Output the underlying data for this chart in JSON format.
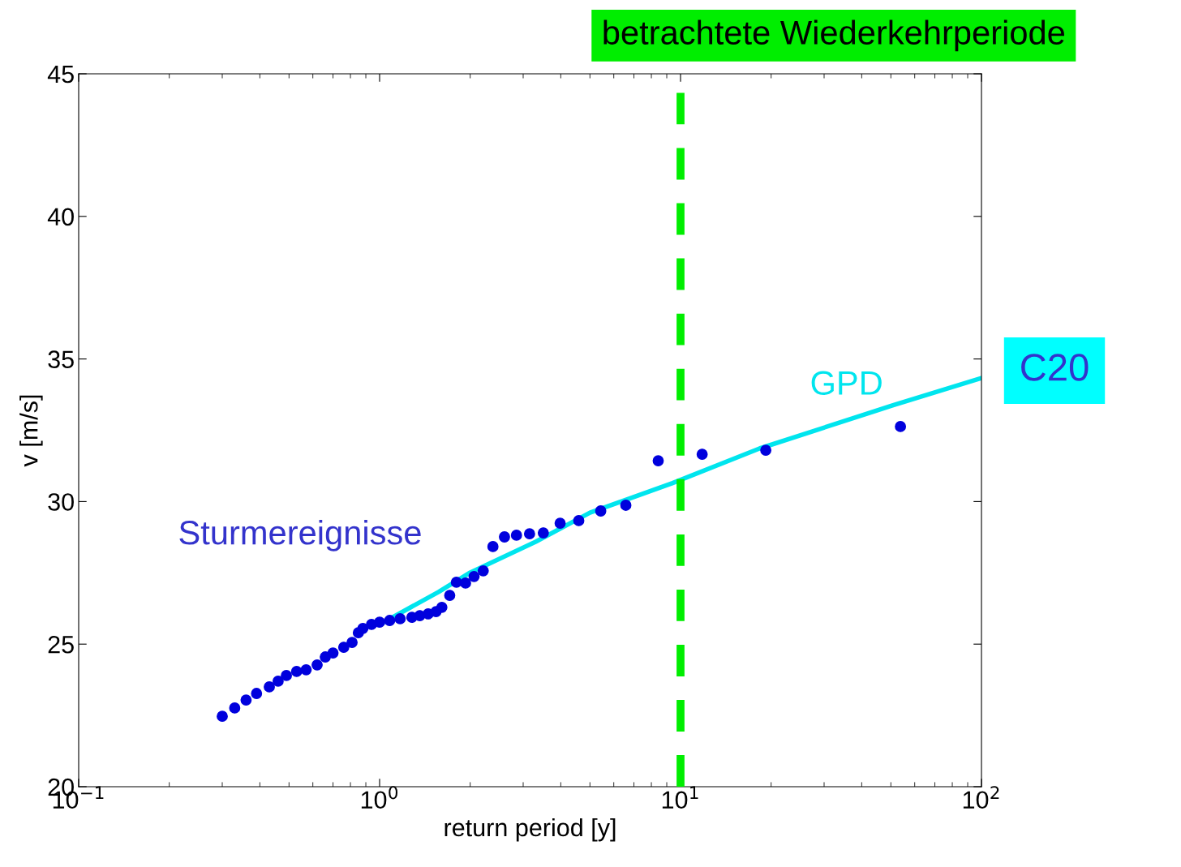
{
  "chart_data": {
    "type": "scatter",
    "xlabel": "return period [y]",
    "ylabel": "v [m/s]",
    "log": "x",
    "xlim": [
      0.1,
      100
    ],
    "ylim": [
      20,
      45
    ],
    "xticks": [
      {
        "value": 0.1,
        "label": "10$^{−1}$"
      },
      {
        "value": 1,
        "label": "10$^{0}$"
      },
      {
        "value": 10,
        "label": "10$^{1}$"
      },
      {
        "value": 100,
        "label": "10$^{2}$"
      }
    ],
    "yticks": [
      20,
      25,
      30,
      35,
      40,
      45
    ],
    "grid": false,
    "legend": false,
    "series": [
      {
        "name": "Sturmereignisse",
        "marker": "circle",
        "color": "#0000dd",
        "x": [
          0.3,
          0.33,
          0.36,
          0.39,
          0.43,
          0.46,
          0.49,
          0.53,
          0.57,
          0.62,
          0.66,
          0.7,
          0.76,
          0.81,
          0.85,
          0.88,
          0.94,
          1.0,
          1.08,
          1.17,
          1.28,
          1.36,
          1.45,
          1.54,
          1.61,
          1.71,
          1.8,
          1.93,
          2.06,
          2.21,
          2.38,
          2.6,
          2.85,
          3.15,
          3.5,
          3.98,
          4.59,
          5.43,
          6.58,
          8.43,
          11.8,
          19.2,
          53.8
        ],
        "values": [
          22.47,
          22.76,
          23.04,
          23.27,
          23.5,
          23.7,
          23.9,
          24.04,
          24.1,
          24.27,
          24.55,
          24.69,
          24.89,
          25.06,
          25.4,
          25.55,
          25.69,
          25.77,
          25.83,
          25.89,
          25.94,
          26.0,
          26.06,
          26.14,
          26.29,
          26.71,
          27.17,
          27.14,
          27.37,
          27.57,
          28.42,
          28.76,
          28.82,
          28.87,
          28.9,
          29.24,
          29.33,
          29.67,
          29.87,
          31.43,
          31.66,
          31.8,
          32.63
        ]
      },
      {
        "name": "GPD",
        "type": "line",
        "color": "#00e5ee",
        "line_style": "solid",
        "x": [
          1,
          1.57,
          2,
          3.3,
          5,
          9.37,
          18.3,
          50.6,
          100
        ],
        "values": [
          25.69,
          26.83,
          27.51,
          28.59,
          29.61,
          30.64,
          31.86,
          33.37,
          34.33
        ]
      }
    ],
    "ref_lines": [
      {
        "axis": "x",
        "value": 10,
        "label": "betrachtete Wiederkehrperiode",
        "color": "#00ee00",
        "line_style": "dashed"
      }
    ],
    "annotations": [
      "C20"
    ]
  }
}
